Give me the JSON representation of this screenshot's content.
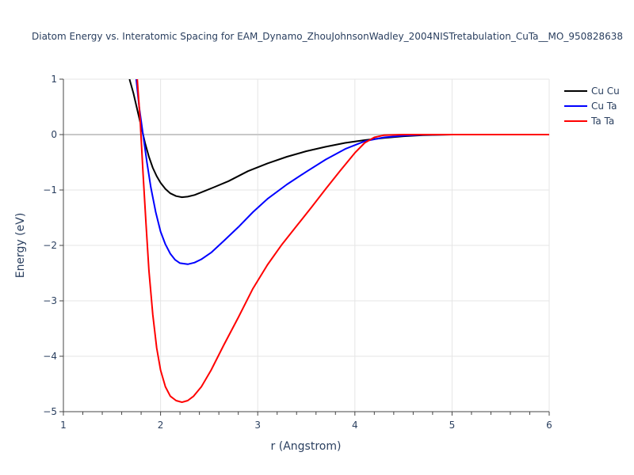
{
  "chart_data": {
    "type": "line",
    "title": "Diatom Energy vs. Interatomic Spacing for EAM_Dynamo_ZhouJohnsonWadley_2004NISTretabulation_CuTa__MO_950828638",
    "xlabel": "r (Angstrom)",
    "ylabel": "Energy (eV)",
    "xlim": [
      1,
      6
    ],
    "ylim": [
      -5,
      1
    ],
    "x_ticks": [
      "1",
      "2",
      "3",
      "4",
      "5",
      "6"
    ],
    "y_ticks": [
      "1",
      "0",
      "−1",
      "−2",
      "−3",
      "−4",
      "−5"
    ],
    "grid": true,
    "legend_position": "top-right",
    "series": [
      {
        "name": "Cu Cu",
        "color": "#000000",
        "points": [
          [
            1.68,
            1.0
          ],
          [
            1.72,
            0.75
          ],
          [
            1.76,
            0.45
          ],
          [
            1.8,
            0.15
          ],
          [
            1.84,
            -0.15
          ],
          [
            1.88,
            -0.4
          ],
          [
            1.92,
            -0.6
          ],
          [
            1.96,
            -0.75
          ],
          [
            2.0,
            -0.87
          ],
          [
            2.05,
            -0.98
          ],
          [
            2.1,
            -1.06
          ],
          [
            2.16,
            -1.11
          ],
          [
            2.22,
            -1.13
          ],
          [
            2.28,
            -1.12
          ],
          [
            2.35,
            -1.09
          ],
          [
            2.45,
            -1.02
          ],
          [
            2.55,
            -0.95
          ],
          [
            2.7,
            -0.84
          ],
          [
            2.9,
            -0.66
          ],
          [
            3.1,
            -0.52
          ],
          [
            3.3,
            -0.4
          ],
          [
            3.5,
            -0.3
          ],
          [
            3.7,
            -0.22
          ],
          [
            3.9,
            -0.15
          ],
          [
            4.1,
            -0.1
          ],
          [
            4.3,
            -0.06
          ],
          [
            4.5,
            -0.03
          ],
          [
            4.7,
            -0.01
          ],
          [
            5.0,
            0.0
          ],
          [
            6.0,
            0.0
          ]
        ]
      },
      {
        "name": "Cu Ta",
        "color": "#0000ff",
        "points": [
          [
            1.75,
            1.0
          ],
          [
            1.78,
            0.5
          ],
          [
            1.82,
            0.0
          ],
          [
            1.86,
            -0.5
          ],
          [
            1.9,
            -0.95
          ],
          [
            1.95,
            -1.4
          ],
          [
            2.0,
            -1.75
          ],
          [
            2.05,
            -1.98
          ],
          [
            2.1,
            -2.15
          ],
          [
            2.15,
            -2.26
          ],
          [
            2.2,
            -2.32
          ],
          [
            2.28,
            -2.34
          ],
          [
            2.35,
            -2.31
          ],
          [
            2.42,
            -2.25
          ],
          [
            2.52,
            -2.13
          ],
          [
            2.65,
            -1.92
          ],
          [
            2.8,
            -1.67
          ],
          [
            2.95,
            -1.4
          ],
          [
            3.1,
            -1.16
          ],
          [
            3.3,
            -0.9
          ],
          [
            3.5,
            -0.67
          ],
          [
            3.7,
            -0.45
          ],
          [
            3.9,
            -0.26
          ],
          [
            4.1,
            -0.12
          ],
          [
            4.3,
            -0.05
          ],
          [
            4.5,
            -0.02
          ],
          [
            4.7,
            -0.005
          ],
          [
            5.0,
            0.0
          ],
          [
            6.0,
            0.0
          ]
        ]
      },
      {
        "name": "Ta Ta",
        "color": "#ff0000",
        "points": [
          [
            1.76,
            1.0
          ],
          [
            1.79,
            0.25
          ],
          [
            1.82,
            -0.7
          ],
          [
            1.85,
            -1.6
          ],
          [
            1.88,
            -2.45
          ],
          [
            1.92,
            -3.25
          ],
          [
            1.96,
            -3.85
          ],
          [
            2.0,
            -4.25
          ],
          [
            2.05,
            -4.55
          ],
          [
            2.1,
            -4.72
          ],
          [
            2.16,
            -4.8
          ],
          [
            2.22,
            -4.83
          ],
          [
            2.28,
            -4.8
          ],
          [
            2.34,
            -4.72
          ],
          [
            2.42,
            -4.55
          ],
          [
            2.52,
            -4.25
          ],
          [
            2.65,
            -3.8
          ],
          [
            2.8,
            -3.3
          ],
          [
            2.95,
            -2.78
          ],
          [
            3.1,
            -2.35
          ],
          [
            3.25,
            -1.98
          ],
          [
            3.4,
            -1.65
          ],
          [
            3.55,
            -1.32
          ],
          [
            3.7,
            -0.98
          ],
          [
            3.85,
            -0.65
          ],
          [
            4.0,
            -0.33
          ],
          [
            4.1,
            -0.15
          ],
          [
            4.2,
            -0.05
          ],
          [
            4.3,
            -0.01
          ],
          [
            4.5,
            0.0
          ],
          [
            6.0,
            0.0
          ]
        ]
      }
    ]
  }
}
